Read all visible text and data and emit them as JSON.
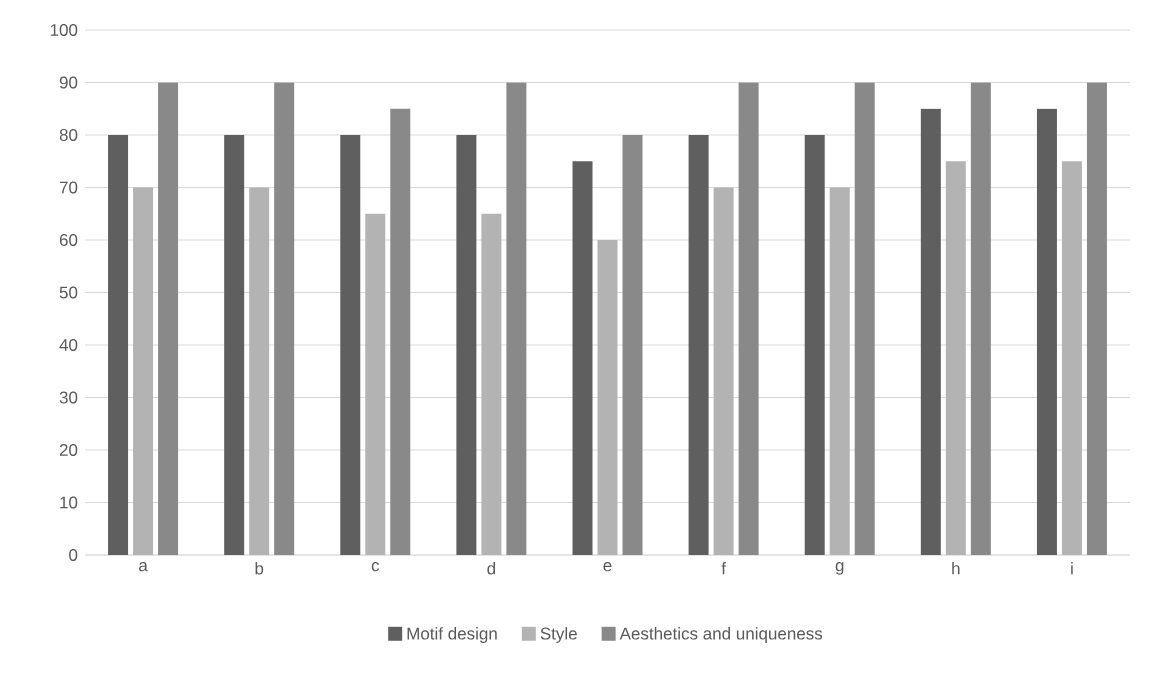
{
  "chart_data": {
    "type": "bar",
    "categories": [
      "a",
      "b",
      "c",
      "d",
      "e",
      "f",
      "g",
      "h",
      "i"
    ],
    "series": [
      {
        "name": "Motif design",
        "color": "#5f5f5f",
        "values": [
          80,
          80,
          80,
          80,
          75,
          80,
          80,
          85,
          85
        ]
      },
      {
        "name": "Style",
        "color": "#b3b3b3",
        "values": [
          70,
          70,
          65,
          65,
          60,
          70,
          70,
          75,
          75
        ]
      },
      {
        "name": "Aesthetics and uniqueness",
        "color": "#898989",
        "values": [
          90,
          90,
          85,
          90,
          80,
          90,
          90,
          90,
          90
        ]
      }
    ],
    "ylim": [
      0,
      100
    ],
    "yticks": [
      0,
      10,
      20,
      30,
      40,
      50,
      60,
      70,
      80,
      90,
      100
    ],
    "grid": "y",
    "legend": "bottom"
  }
}
